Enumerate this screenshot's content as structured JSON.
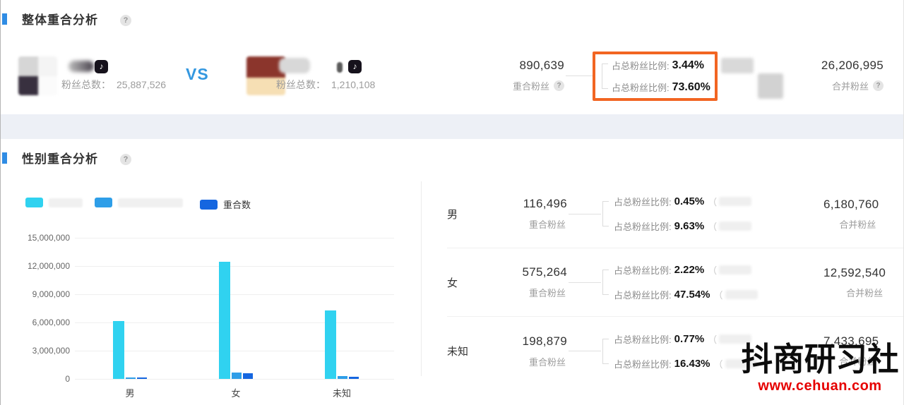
{
  "icons": {
    "help": "?",
    "douyin": "♪"
  },
  "colors": {
    "accent_blue": "#2f8ce4",
    "highlight_orange": "#f26522",
    "series_cyan": "#30d2f0",
    "series_blue": "#2e9ee8",
    "series_dark_blue": "#1566e0",
    "watermark_red": "#e60000"
  },
  "overall": {
    "section_title": "整体重合分析",
    "vs_label": "VS",
    "account_a": {
      "fans_label": "粉丝总数：",
      "fans_value": "25,887,526"
    },
    "account_b": {
      "fans_label": "粉丝总数：",
      "fans_value": "1,210,108"
    },
    "overlap": {
      "value": "890,639",
      "label": "重合粉丝"
    },
    "box": {
      "ratio_a_label": "占总粉丝比例:",
      "ratio_a_value": "3.44%",
      "ratio_b_label": "占总粉丝比例:",
      "ratio_b_value": "73.60%"
    },
    "merged": {
      "value": "26,206,995",
      "label": "合并粉丝"
    }
  },
  "gender": {
    "section_title": "性别重合分析",
    "paren": "（",
    "legend": {
      "overlap_label": "重合数"
    },
    "rows": [
      {
        "name": "男",
        "overlap_value": "116,496",
        "overlap_label": "重合粉丝",
        "ratio_a_label": "占总粉丝比例:",
        "ratio_a_value": "0.45%",
        "ratio_b_label": "占总粉丝比例:",
        "ratio_b_value": "9.63%",
        "merged_value": "6,180,760",
        "merged_label": "合并粉丝"
      },
      {
        "name": "女",
        "overlap_value": "575,264",
        "overlap_label": "重合粉丝",
        "ratio_a_label": "占总粉丝比例:",
        "ratio_a_value": "2.22%",
        "ratio_b_label": "占总粉丝比例:",
        "ratio_b_value": "47.54%",
        "merged_value": "12,592,540",
        "merged_label": "合并粉丝"
      },
      {
        "name": "未知",
        "overlap_value": "198,879",
        "overlap_label": "重合粉丝",
        "ratio_a_label": "占总粉丝比例:",
        "ratio_a_value": "0.77%",
        "ratio_b_label": "占总粉丝比例:",
        "ratio_b_value": "16.43%",
        "merged_value": "7,433,695",
        "merged_label": "合并粉丝"
      }
    ]
  },
  "chart_data": {
    "type": "bar",
    "categories": [
      "男",
      "女",
      "未知"
    ],
    "series": [
      {
        "name": "account-a-fans",
        "color": "#30d2f0",
        "values": [
          6150000,
          12450000,
          7300000
        ]
      },
      {
        "name": "account-b-fans",
        "color": "#2e9ee8",
        "values": [
          150000,
          700000,
          330000
        ]
      },
      {
        "name": "重合数",
        "color": "#1566e0",
        "values": [
          116496,
          575264,
          198879
        ]
      }
    ],
    "ylim": [
      0,
      15000000
    ],
    "yticks": [
      "15,000,000",
      "12,000,000",
      "9,000,000",
      "6,000,000",
      "3,000,000",
      "0"
    ],
    "grid": true,
    "legend_position": "top"
  },
  "watermark": {
    "name": "抖商研习社",
    "site": "www.cehuan.com"
  }
}
